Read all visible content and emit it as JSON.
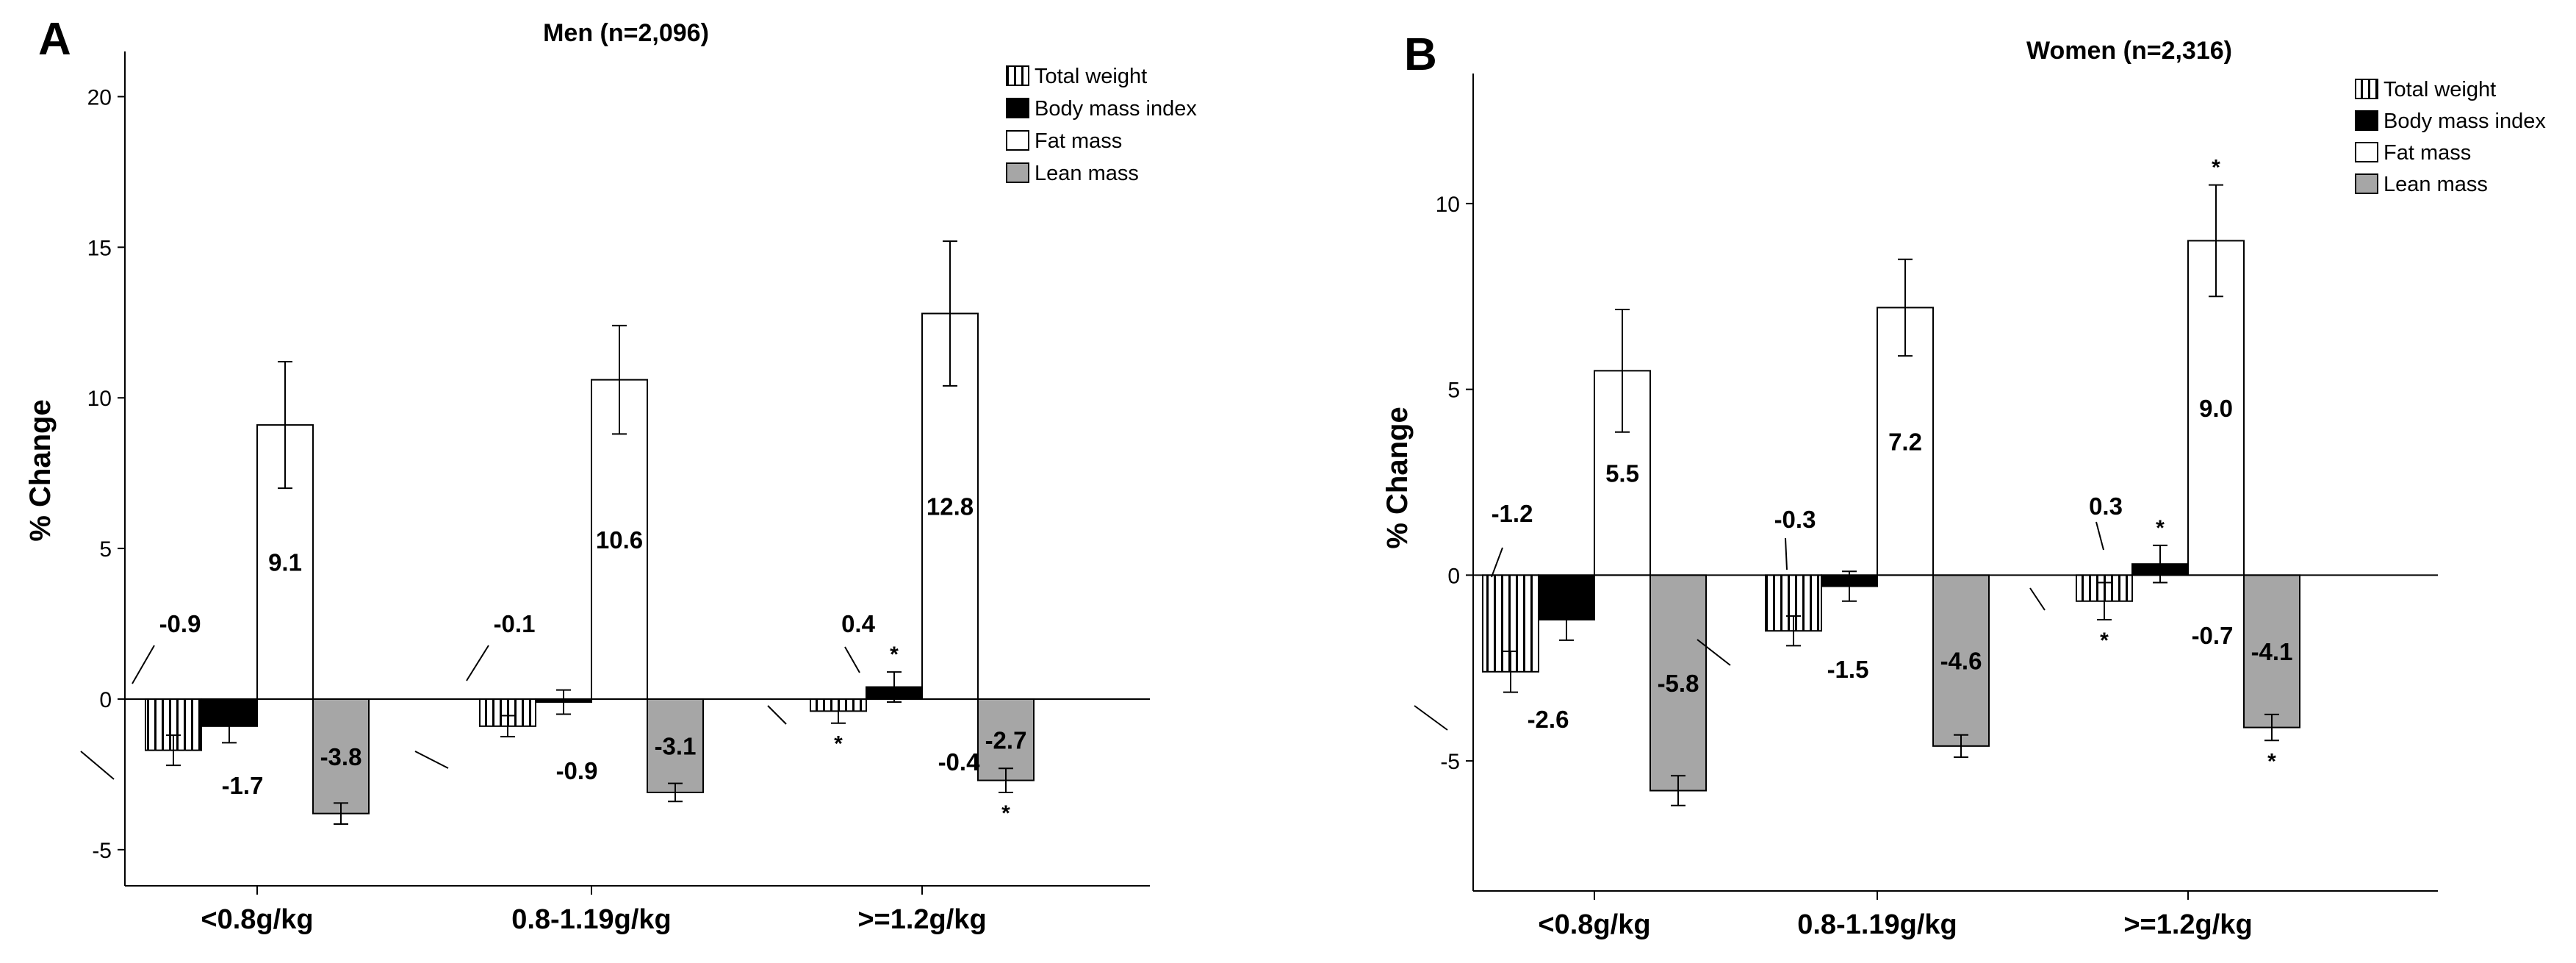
{
  "chart_data": [
    {
      "panel": "A",
      "type": "bar",
      "title": "Men (n=2,096)",
      "xlabel": "",
      "ylabel": "% Change",
      "ylim": [
        -6.2,
        21.5
      ],
      "yticks": [
        -5,
        0,
        5,
        10,
        15,
        20
      ],
      "categories": [
        "<0.8g/kg",
        "0.8-1.19g/kg",
        ">=1.2g/kg"
      ],
      "legend_position": "top-right",
      "series": [
        {
          "name": "Total weight",
          "fill": "striped",
          "values": [
            -1.7,
            -0.9,
            -0.4
          ],
          "errors": [
            0.5,
            0.35,
            0.4
          ],
          "labels": [
            "-1.7",
            "-0.9",
            "-0.4"
          ],
          "significant": [
            false,
            false,
            true
          ]
        },
        {
          "name": "Body mass index",
          "fill": "#000000",
          "values": [
            -0.9,
            -0.1,
            0.4
          ],
          "errors": [
            0.55,
            0.4,
            0.5
          ],
          "labels": [
            "-0.9",
            "-0.1",
            "0.4"
          ],
          "significant": [
            false,
            false,
            true
          ]
        },
        {
          "name": "Fat mass",
          "fill": "#ffffff",
          "values": [
            9.1,
            10.6,
            12.8
          ],
          "errors": [
            2.1,
            1.8,
            2.4
          ],
          "labels": [
            "9.1",
            "10.6",
            "12.8"
          ],
          "significant": [
            false,
            false,
            false
          ]
        },
        {
          "name": "Lean mass",
          "fill": "#a6a6a6",
          "values": [
            -3.8,
            -3.1,
            -2.7
          ],
          "errors": [
            0.35,
            0.3,
            0.4
          ],
          "labels": [
            "-3.8",
            "-3.1",
            "-2.7"
          ],
          "significant": [
            false,
            false,
            true
          ]
        }
      ],
      "significance_marker": "*"
    },
    {
      "panel": "B",
      "type": "bar",
      "title": "Women (n=2,316)",
      "xlabel": "",
      "ylabel": "% Change",
      "ylim": [
        -8.5,
        13.5
      ],
      "yticks": [
        -5,
        0,
        5,
        10
      ],
      "categories": [
        "<0.8g/kg",
        "0.8-1.19g/kg",
        ">=1.2g/kg"
      ],
      "legend_position": "top-right",
      "series": [
        {
          "name": "Total weight",
          "fill": "striped",
          "values": [
            -2.6,
            -1.5,
            -0.7
          ],
          "errors": [
            0.55,
            0.4,
            0.5
          ],
          "labels": [
            "-2.6",
            "-1.5",
            "-0.7"
          ],
          "significant": [
            false,
            false,
            true
          ]
        },
        {
          "name": "Body mass index",
          "fill": "#000000",
          "values": [
            -1.2,
            -0.3,
            0.3
          ],
          "errors": [
            0.55,
            0.4,
            0.5
          ],
          "labels": [
            "-1.2",
            "-0.3",
            "0.3"
          ],
          "significant": [
            false,
            false,
            true
          ]
        },
        {
          "name": "Fat mass",
          "fill": "#ffffff",
          "values": [
            5.5,
            7.2,
            9.0
          ],
          "errors": [
            1.65,
            1.3,
            1.5
          ],
          "labels": [
            "5.5",
            "7.2",
            "9.0"
          ],
          "significant": [
            false,
            false,
            true
          ]
        },
        {
          "name": "Lean mass",
          "fill": "#a6a6a6",
          "values": [
            -5.8,
            -4.6,
            -4.1
          ],
          "errors": [
            0.4,
            0.3,
            0.35
          ],
          "labels": [
            "-5.8",
            "-4.6",
            "-4.1"
          ],
          "significant": [
            false,
            false,
            true
          ]
        }
      ],
      "significance_marker": "*"
    }
  ]
}
